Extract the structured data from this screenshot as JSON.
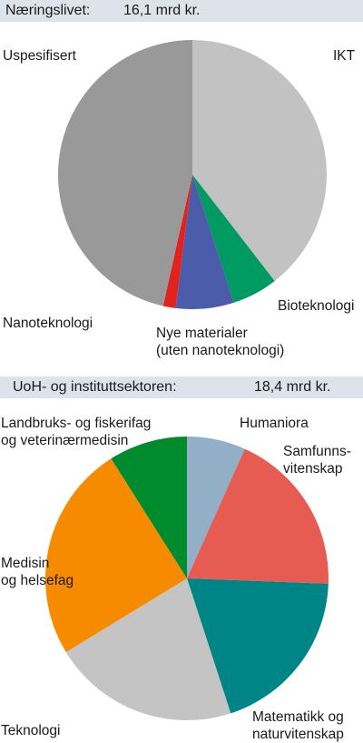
{
  "chart_data": [
    {
      "type": "pie",
      "header": {
        "label": "Næringslivet:",
        "value": "16,1 mrd kr."
      },
      "slices": [
        {
          "label": [
            "IKT"
          ],
          "value": 39.5,
          "color": "#c2c2c2"
        },
        {
          "label": [
            "Bioteknologi"
          ],
          "value": 5.5,
          "color": "#009a63"
        },
        {
          "label": [
            "Nye materialer",
            "(uten nanoteknologi)"
          ],
          "value": 7.0,
          "color": "#4b5cab"
        },
        {
          "label": [
            "Nanoteknologi"
          ],
          "value": 1.5,
          "color": "#e3231b"
        },
        {
          "label": [
            "Uspesifisert"
          ],
          "value": 46.5,
          "color": "#999999"
        }
      ]
    },
    {
      "type": "pie",
      "header": {
        "label": "UoH- og instituttsektoren:",
        "value": "18,4 mrd kr."
      },
      "slices": [
        {
          "label": [
            "Humaniora"
          ],
          "value": 6.7,
          "color": "#93afc8"
        },
        {
          "label": [
            "Samfunns-",
            "vitenskap"
          ],
          "value": 18.9,
          "color": "#e65c52"
        },
        {
          "label": [
            "Matematikk og",
            "naturvitenskap"
          ],
          "value": 19.4,
          "color": "#008587"
        },
        {
          "label": [
            "Teknologi"
          ],
          "value": 21.3,
          "color": "#c4c4c4"
        },
        {
          "label": [
            "Medisin",
            "og helsefag"
          ],
          "value": 24.7,
          "color": "#f78b00"
        },
        {
          "label": [
            "Landbruks- og fiskerifag",
            "og veterinærmedisin"
          ],
          "value": 9.0,
          "color": "#008c2e"
        }
      ]
    }
  ]
}
